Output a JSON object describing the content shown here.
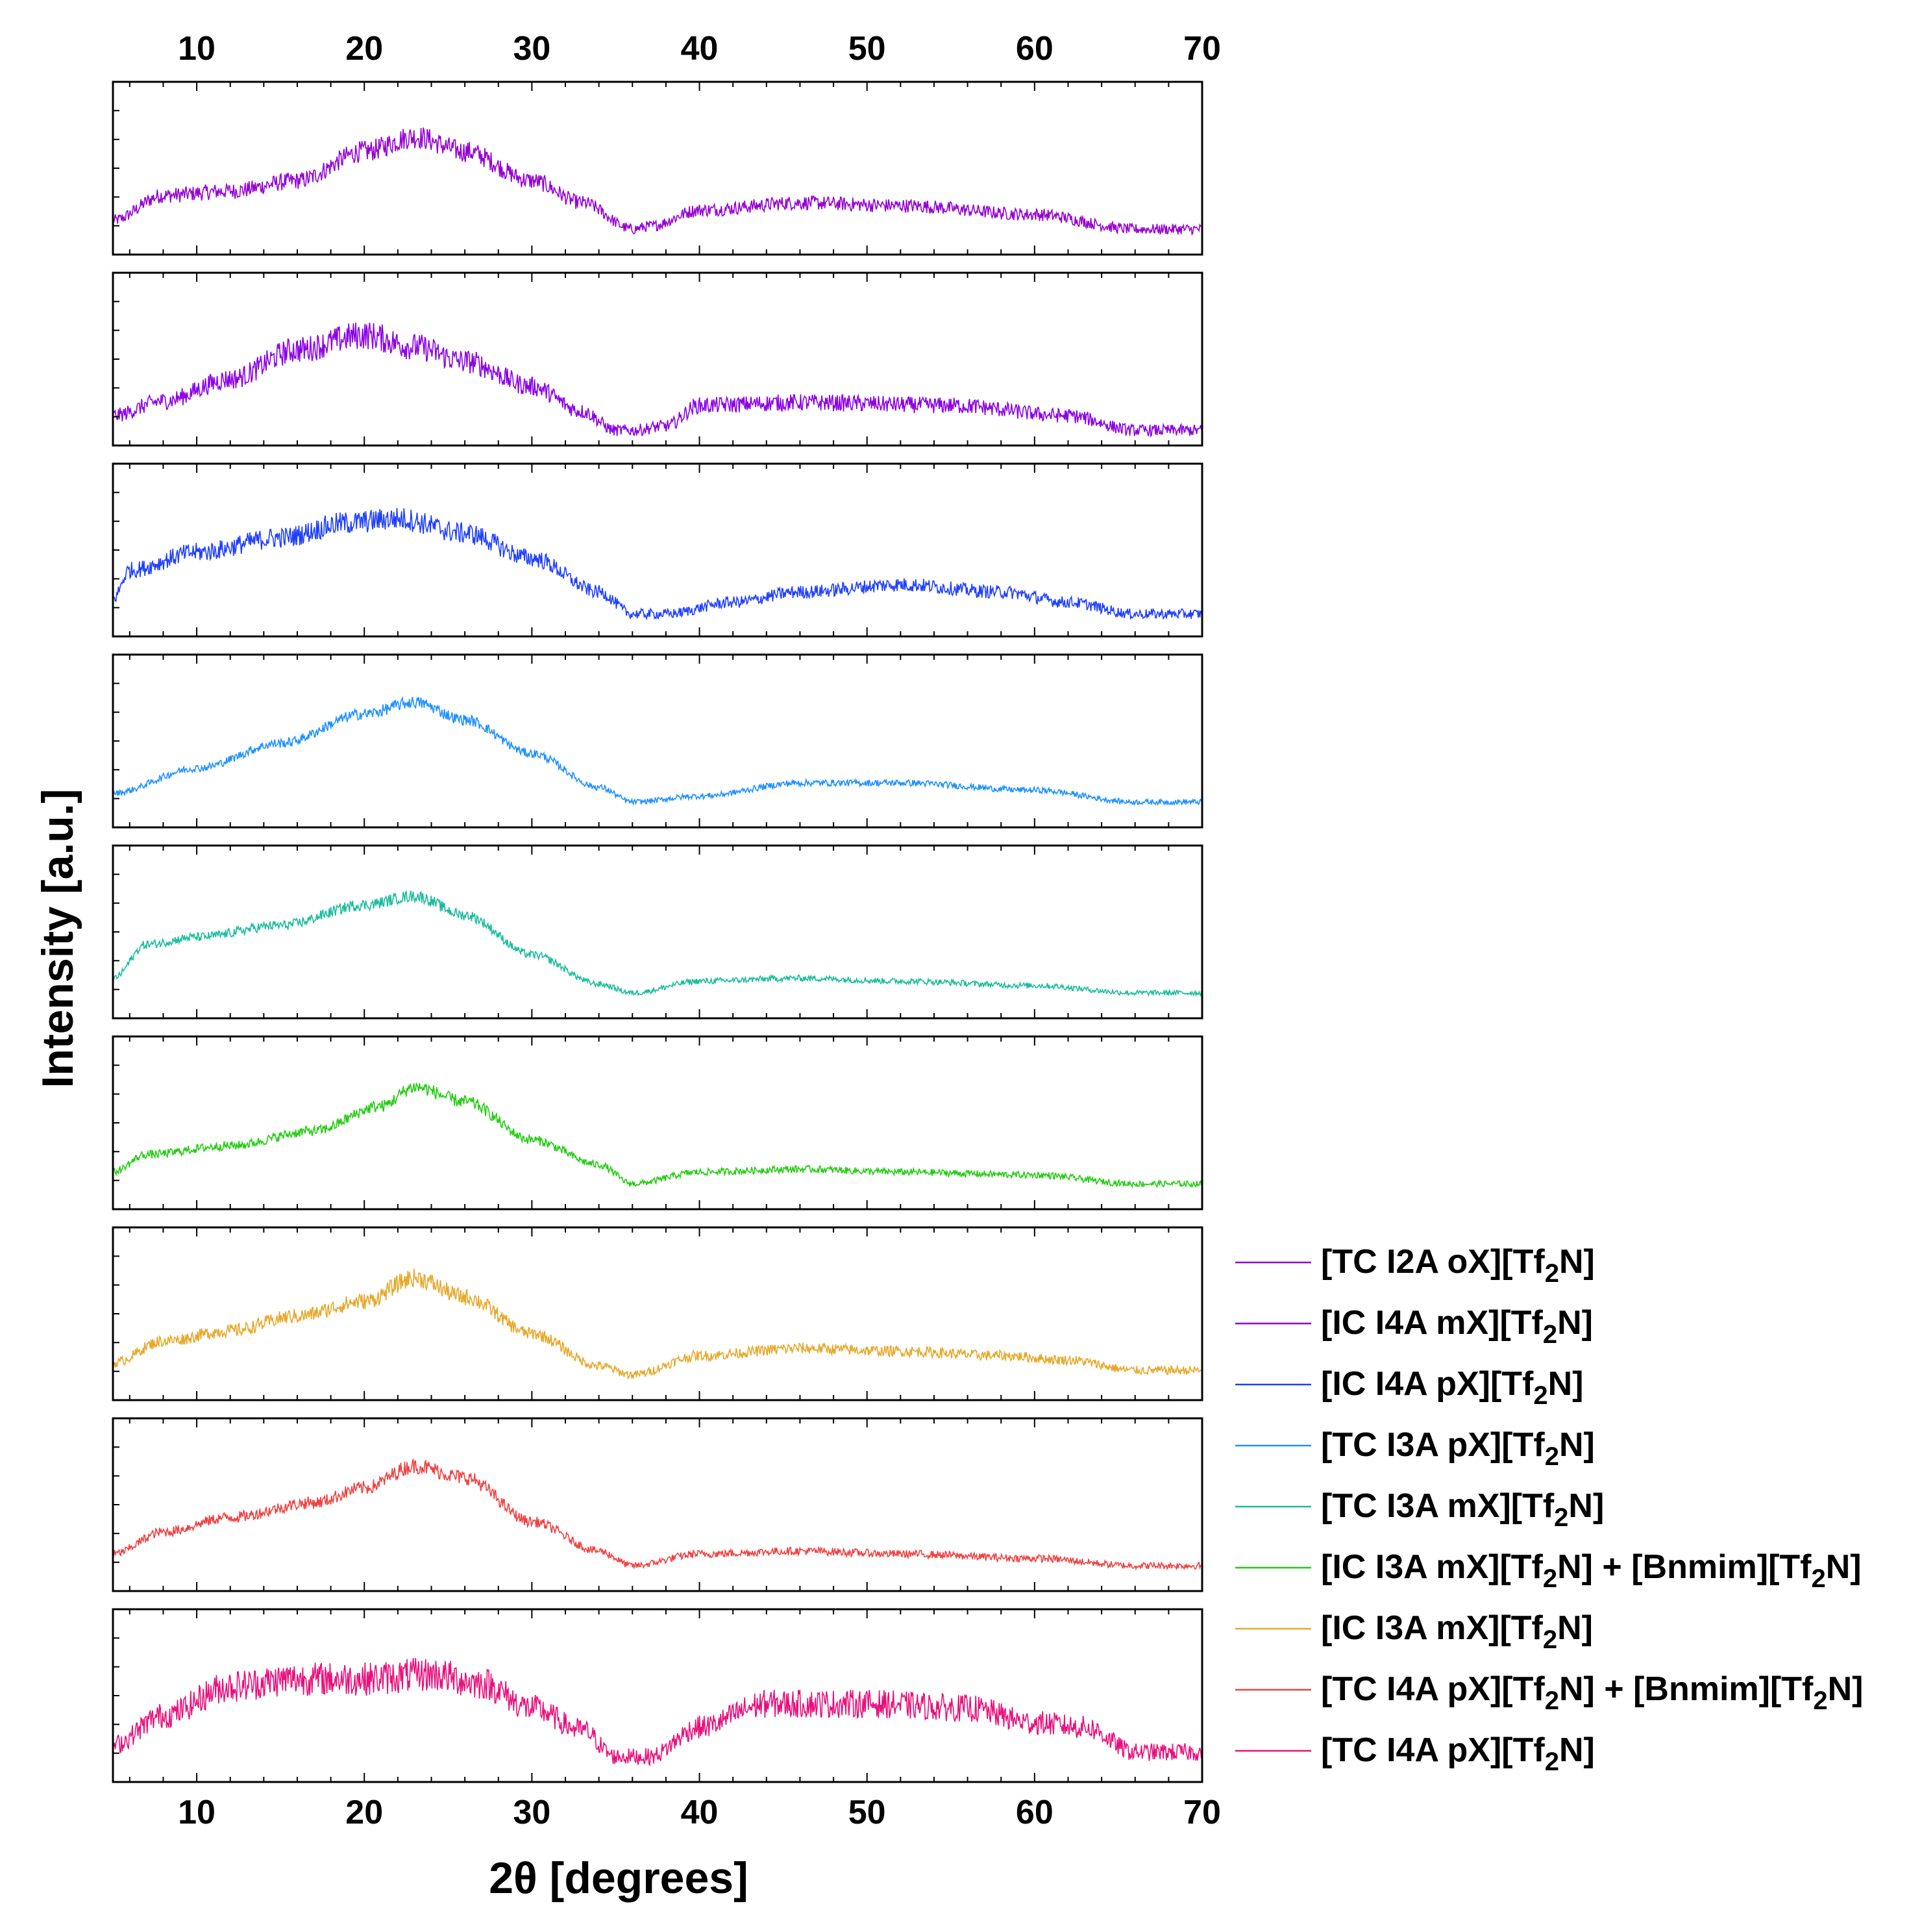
{
  "chart_data": {
    "type": "line",
    "layout": "stacked-panels",
    "xlabel": "2θ [degrees]",
    "ylabel": "Intensity [a.u.]",
    "xlim": [
      5,
      70
    ],
    "xticks": [
      10,
      20,
      30,
      40,
      50,
      60,
      70
    ],
    "ylim": [
      0,
      1
    ],
    "series": [
      {
        "name": "[TC I2A oX][Tf2N]",
        "label_main": "[TC I2A oX][Tf",
        "label_sub": "2",
        "label_tail": "N]",
        "color": "#9400D3",
        "noise": 0.07,
        "points": [
          [
            5,
            0.18
          ],
          [
            8,
            0.35
          ],
          [
            12,
            0.38
          ],
          [
            16,
            0.45
          ],
          [
            20,
            0.65
          ],
          [
            23,
            0.75
          ],
          [
            26,
            0.65
          ],
          [
            30,
            0.45
          ],
          [
            33,
            0.3
          ],
          [
            36,
            0.12
          ],
          [
            37,
            0.14
          ],
          [
            40,
            0.25
          ],
          [
            46,
            0.3
          ],
          [
            52,
            0.28
          ],
          [
            60,
            0.22
          ],
          [
            66,
            0.12
          ],
          [
            70,
            0.12
          ]
        ]
      },
      {
        "name": "[IC I4A mX][Tf2N]",
        "label_main": "[IC I4A mX][Tf",
        "label_sub": "2",
        "label_tail": "N]",
        "color": "#8A00E6",
        "noise": 0.09,
        "points": [
          [
            5,
            0.15
          ],
          [
            8,
            0.25
          ],
          [
            12,
            0.4
          ],
          [
            16,
            0.6
          ],
          [
            20,
            0.7
          ],
          [
            23,
            0.62
          ],
          [
            26,
            0.52
          ],
          [
            30,
            0.35
          ],
          [
            33,
            0.18
          ],
          [
            35,
            0.05
          ],
          [
            36,
            0.05
          ],
          [
            38,
            0.08
          ],
          [
            40,
            0.22
          ],
          [
            46,
            0.24
          ],
          [
            55,
            0.22
          ],
          [
            62,
            0.15
          ],
          [
            66,
            0.05
          ],
          [
            70,
            0.05
          ]
        ]
      },
      {
        "name": "[IC I4A pX][Tf2N]",
        "label_main": "[IC I4A pX][Tf",
        "label_sub": "2",
        "label_tail": "N]",
        "color": "#1F3FFF",
        "noise": 0.07,
        "points": [
          [
            5,
            0.2
          ],
          [
            6,
            0.4
          ],
          [
            10,
            0.52
          ],
          [
            15,
            0.62
          ],
          [
            19,
            0.72
          ],
          [
            22,
            0.75
          ],
          [
            26,
            0.65
          ],
          [
            30,
            0.48
          ],
          [
            34,
            0.25
          ],
          [
            36,
            0.1
          ],
          [
            38,
            0.1
          ],
          [
            42,
            0.18
          ],
          [
            46,
            0.25
          ],
          [
            52,
            0.3
          ],
          [
            58,
            0.25
          ],
          [
            62,
            0.18
          ],
          [
            66,
            0.1
          ],
          [
            70,
            0.1
          ]
        ]
      },
      {
        "name": "[TC I3A pX][Tf2N]",
        "label_main": "[TC I3A pX][Tf",
        "label_sub": "2",
        "label_tail": "N]",
        "color": "#1E90FF",
        "noise": 0.035,
        "points": [
          [
            5,
            0.18
          ],
          [
            10,
            0.35
          ],
          [
            15,
            0.52
          ],
          [
            20,
            0.72
          ],
          [
            23,
            0.8
          ],
          [
            26,
            0.68
          ],
          [
            30,
            0.45
          ],
          [
            34,
            0.22
          ],
          [
            36,
            0.12
          ],
          [
            40,
            0.16
          ],
          [
            46,
            0.25
          ],
          [
            52,
            0.25
          ],
          [
            60,
            0.2
          ],
          [
            66,
            0.12
          ],
          [
            70,
            0.12
          ]
        ]
      },
      {
        "name": "[TC I3A mX][Tf2N]",
        "label_main": "[TC I3A mX][Tf",
        "label_sub": "2",
        "label_tail": "N]",
        "color": "#1ABC9C",
        "noise": 0.035,
        "points": [
          [
            5,
            0.22
          ],
          [
            7,
            0.45
          ],
          [
            10,
            0.5
          ],
          [
            15,
            0.58
          ],
          [
            20,
            0.72
          ],
          [
            23,
            0.78
          ],
          [
            26,
            0.65
          ],
          [
            30,
            0.38
          ],
          [
            34,
            0.18
          ],
          [
            36,
            0.12
          ],
          [
            40,
            0.2
          ],
          [
            46,
            0.22
          ],
          [
            52,
            0.2
          ],
          [
            60,
            0.17
          ],
          [
            66,
            0.12
          ],
          [
            70,
            0.12
          ]
        ]
      },
      {
        "name": "[IC I3A mX][Tf2N] + [Bnmim][Tf2N]",
        "label_main": "[IC I3A mX][Tf",
        "label_sub": "2",
        "label_tail": "N] + [Bnmim][Tf",
        "label_sub2": "2",
        "label_tail2": "N]",
        "color": "#22CC11",
        "noise": 0.04,
        "points": [
          [
            5,
            0.2
          ],
          [
            7,
            0.32
          ],
          [
            12,
            0.38
          ],
          [
            17,
            0.48
          ],
          [
            21,
            0.65
          ],
          [
            23,
            0.78
          ],
          [
            26,
            0.68
          ],
          [
            30,
            0.42
          ],
          [
            34,
            0.25
          ],
          [
            36,
            0.12
          ],
          [
            40,
            0.2
          ],
          [
            46,
            0.22
          ],
          [
            52,
            0.2
          ],
          [
            60,
            0.18
          ],
          [
            66,
            0.12
          ],
          [
            70,
            0.12
          ]
        ]
      },
      {
        "name": "[IC I3A mX][Tf2N]",
        "label_main": "[IC I3A mX][Tf",
        "label_sub": "2",
        "label_tail": "N]",
        "color": "#E6A82A",
        "noise": 0.055,
        "points": [
          [
            5,
            0.2
          ],
          [
            8,
            0.35
          ],
          [
            12,
            0.42
          ],
          [
            16,
            0.52
          ],
          [
            20,
            0.62
          ],
          [
            23,
            0.78
          ],
          [
            26,
            0.65
          ],
          [
            30,
            0.4
          ],
          [
            34,
            0.18
          ],
          [
            36,
            0.12
          ],
          [
            40,
            0.25
          ],
          [
            46,
            0.3
          ],
          [
            52,
            0.28
          ],
          [
            58,
            0.25
          ],
          [
            62,
            0.22
          ],
          [
            66,
            0.15
          ],
          [
            70,
            0.15
          ]
        ]
      },
      {
        "name": "[TC I4A pX][Tf2N] + [Bnmim][Tf2N]",
        "label_main": "[TC I4A pX][Tf",
        "label_sub": "2",
        "label_tail": "N] + [Bnmim][Tf",
        "label_sub2": "2",
        "label_tail2": "N]",
        "color": "#F04040",
        "noise": 0.045,
        "points": [
          [
            5,
            0.2
          ],
          [
            8,
            0.35
          ],
          [
            12,
            0.45
          ],
          [
            17,
            0.55
          ],
          [
            20,
            0.65
          ],
          [
            23,
            0.8
          ],
          [
            26,
            0.72
          ],
          [
            30,
            0.42
          ],
          [
            34,
            0.22
          ],
          [
            36,
            0.12
          ],
          [
            40,
            0.2
          ],
          [
            46,
            0.22
          ],
          [
            52,
            0.2
          ],
          [
            60,
            0.17
          ],
          [
            66,
            0.12
          ],
          [
            70,
            0.12
          ]
        ]
      },
      {
        "name": "[TC I4A pX][Tf2N]",
        "label_main": "[TC I4A pX][Tf",
        "label_sub": "2",
        "label_tail": "N]",
        "color": "#E8107C",
        "noise": 0.11,
        "points": [
          [
            5,
            0.2
          ],
          [
            8,
            0.4
          ],
          [
            12,
            0.6
          ],
          [
            16,
            0.65
          ],
          [
            20,
            0.65
          ],
          [
            24,
            0.68
          ],
          [
            27,
            0.62
          ],
          [
            30,
            0.45
          ],
          [
            33,
            0.3
          ],
          [
            35,
            0.12
          ],
          [
            37,
            0.12
          ],
          [
            40,
            0.32
          ],
          [
            44,
            0.48
          ],
          [
            50,
            0.48
          ],
          [
            56,
            0.45
          ],
          [
            60,
            0.35
          ],
          [
            63,
            0.32
          ],
          [
            66,
            0.15
          ],
          [
            70,
            0.15
          ]
        ]
      }
    ]
  }
}
